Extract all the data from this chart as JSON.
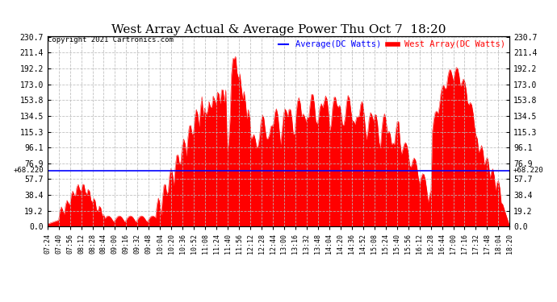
{
  "title": "West Array Actual & Average Power Thu Oct 7  18:20",
  "copyright": "Copyright 2021 Cartronics.com",
  "legend_average": "Average(DC Watts)",
  "legend_west": "West Array(DC Watts)",
  "average_value": 68.22,
  "ymin": 0.0,
  "ymax": 230.7,
  "yticks": [
    0.0,
    19.2,
    38.4,
    57.7,
    76.9,
    96.1,
    115.3,
    134.5,
    153.8,
    173.0,
    192.2,
    211.4,
    230.7
  ],
  "xtick_labels": [
    "07:24",
    "07:40",
    "07:56",
    "08:12",
    "08:28",
    "08:44",
    "09:00",
    "09:16",
    "09:32",
    "09:48",
    "10:04",
    "10:20",
    "10:36",
    "10:52",
    "11:08",
    "11:24",
    "11:40",
    "11:56",
    "12:12",
    "12:28",
    "12:44",
    "13:00",
    "13:16",
    "13:32",
    "13:48",
    "14:04",
    "14:20",
    "14:36",
    "14:52",
    "15:08",
    "15:24",
    "15:40",
    "15:56",
    "16:12",
    "16:28",
    "16:44",
    "17:00",
    "17:16",
    "17:32",
    "17:48",
    "18:04",
    "18:20"
  ],
  "background_color": "#ffffff",
  "grid_color": "#bbbbbb",
  "fill_color": "#ff0000",
  "line_color": "#ff0000",
  "average_line_color": "#0000ff",
  "average_label_color": "#0000ff",
  "west_label_color": "#ff0000",
  "title_color": "#000000",
  "copyright_color": "#000000"
}
